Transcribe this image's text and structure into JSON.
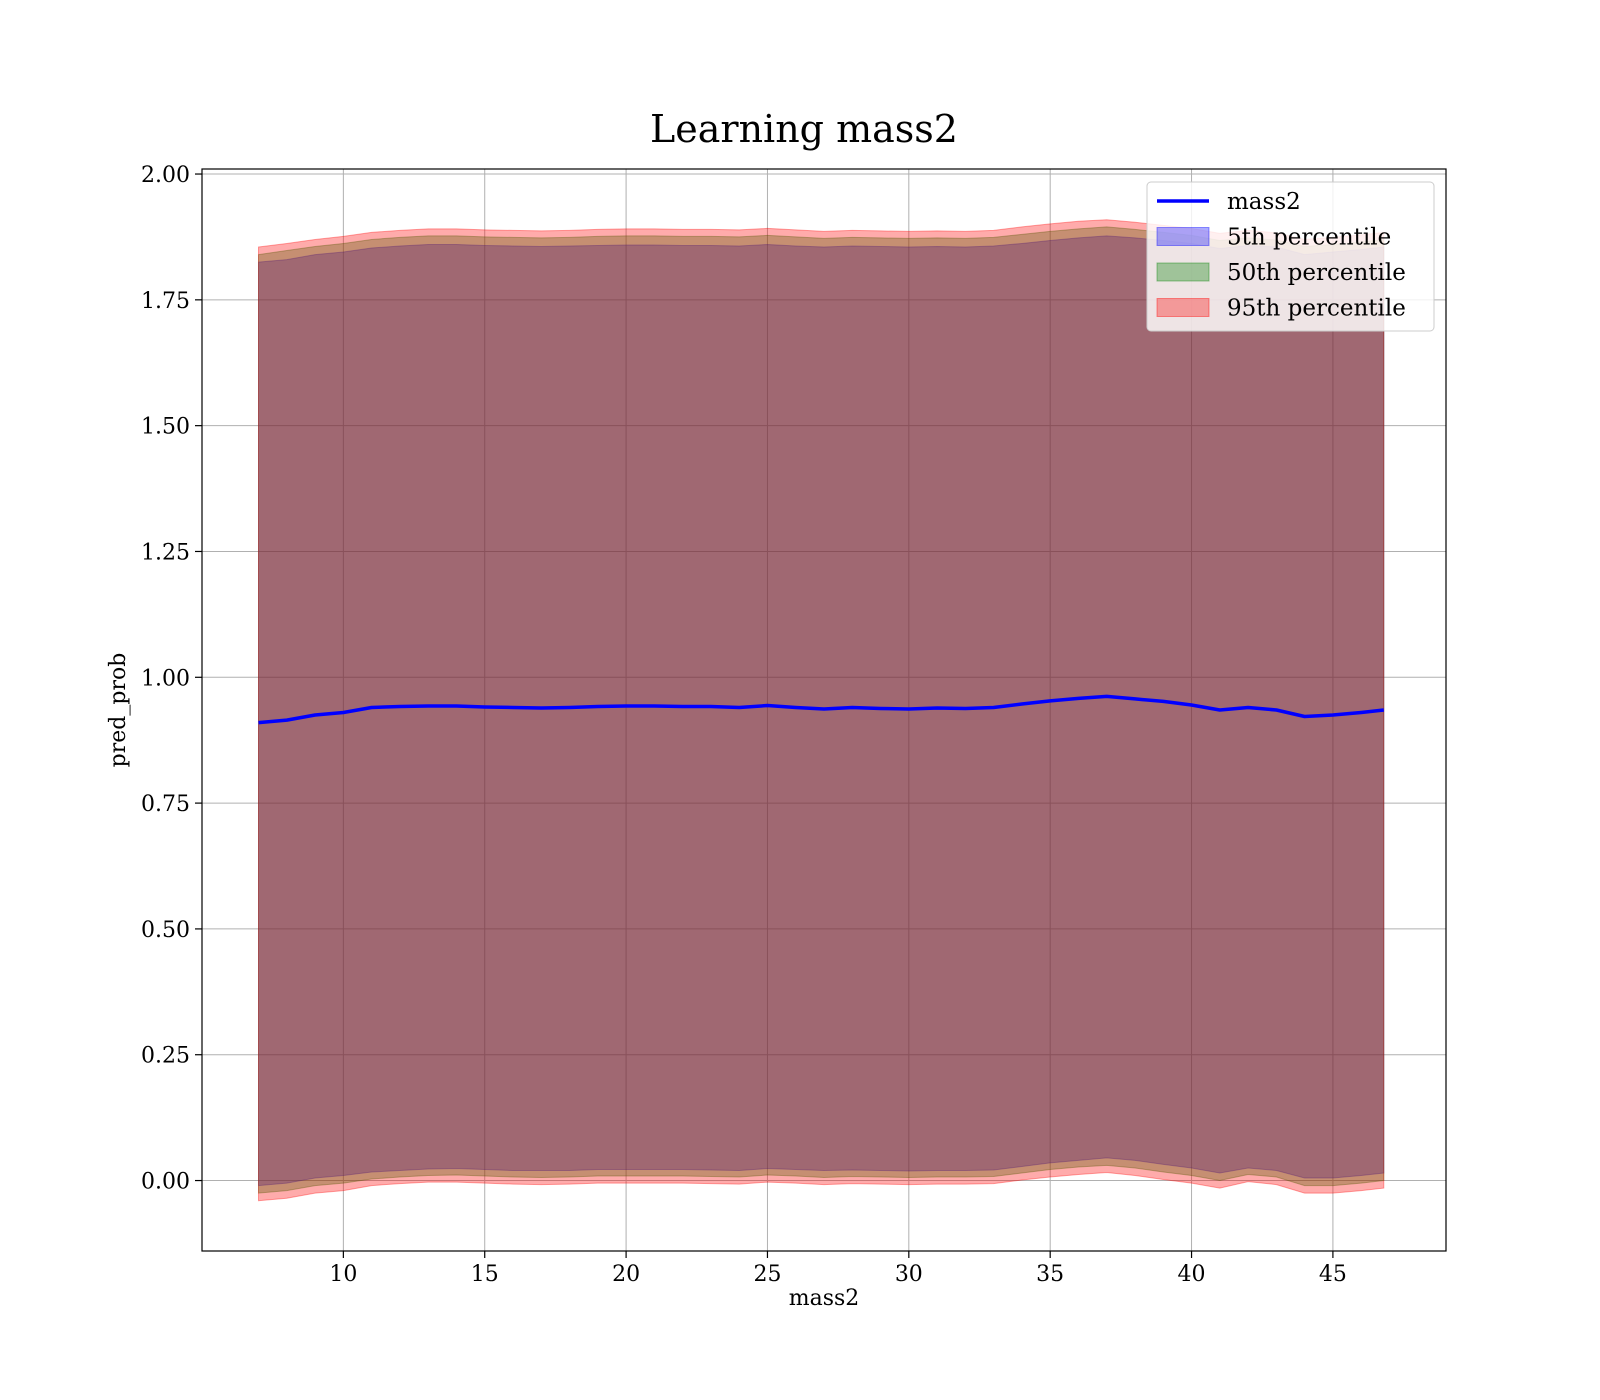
{
  "chart_data": {
    "type": "area",
    "title": "Learning mass2",
    "xlabel": "mass2",
    "ylabel": "pred_prob",
    "xlim": [
      5,
      49
    ],
    "ylim": [
      -0.14,
      2.01
    ],
    "xticks": [
      10,
      15,
      20,
      25,
      30,
      35,
      40,
      45
    ],
    "yticks": [
      0.0,
      0.25,
      0.5,
      0.75,
      1.0,
      1.25,
      1.5,
      1.75,
      2.0
    ],
    "ytick_labels": [
      "0.00",
      "0.25",
      "0.50",
      "0.75",
      "1.00",
      "1.25",
      "1.50",
      "1.75",
      "2.00"
    ],
    "grid": true,
    "legend_position": "top-right",
    "x": [
      7,
      8,
      9,
      10,
      11,
      12,
      13,
      14,
      15,
      16,
      17,
      18,
      19,
      20,
      21,
      22,
      23,
      24,
      25,
      26,
      27,
      28,
      29,
      30,
      31,
      32,
      33,
      34,
      35,
      36,
      37,
      38,
      39,
      40,
      41,
      42,
      43,
      44,
      45,
      46,
      46.8
    ],
    "line": {
      "name": "mass2",
      "color": "#0000ff",
      "values": [
        0.91,
        0.915,
        0.925,
        0.93,
        0.94,
        0.942,
        0.943,
        0.943,
        0.941,
        0.94,
        0.939,
        0.94,
        0.942,
        0.943,
        0.943,
        0.942,
        0.942,
        0.94,
        0.944,
        0.94,
        0.937,
        0.94,
        0.938,
        0.937,
        0.939,
        0.938,
        0.94,
        0.947,
        0.953,
        0.958,
        0.962,
        0.957,
        0.952,
        0.945,
        0.935,
        0.94,
        0.935,
        0.922,
        0.925,
        0.93,
        0.935
      ]
    },
    "series": [
      {
        "name": "5th percentile",
        "color": "#0000ff",
        "lower": [
          -0.01,
          -0.005,
          0.005,
          0.01,
          0.017,
          0.02,
          0.023,
          0.024,
          0.022,
          0.02,
          0.02,
          0.02,
          0.022,
          0.022,
          0.022,
          0.022,
          0.021,
          0.02,
          0.024,
          0.022,
          0.02,
          0.021,
          0.02,
          0.019,
          0.02,
          0.02,
          0.021,
          0.028,
          0.035,
          0.04,
          0.045,
          0.04,
          0.032,
          0.025,
          0.015,
          0.025,
          0.02,
          0.005,
          0.005,
          0.01,
          0.015
        ],
        "upper": [
          1.825,
          1.83,
          1.84,
          1.845,
          1.853,
          1.857,
          1.86,
          1.86,
          1.858,
          1.857,
          1.856,
          1.857,
          1.858,
          1.859,
          1.859,
          1.858,
          1.858,
          1.857,
          1.86,
          1.857,
          1.855,
          1.857,
          1.856,
          1.855,
          1.856,
          1.855,
          1.857,
          1.862,
          1.868,
          1.873,
          1.877,
          1.873,
          1.868,
          1.862,
          1.852,
          1.858,
          1.855,
          1.84,
          1.845,
          1.85,
          1.855
        ]
      },
      {
        "name": "50th percentile",
        "color": "#008000",
        "lower": [
          -0.025,
          -0.02,
          -0.01,
          -0.005,
          0.003,
          0.007,
          0.01,
          0.011,
          0.009,
          0.007,
          0.006,
          0.007,
          0.009,
          0.009,
          0.009,
          0.009,
          0.008,
          0.007,
          0.011,
          0.009,
          0.006,
          0.008,
          0.007,
          0.006,
          0.007,
          0.007,
          0.008,
          0.015,
          0.022,
          0.027,
          0.03,
          0.025,
          0.017,
          0.01,
          0.0,
          0.012,
          0.007,
          -0.01,
          -0.01,
          -0.005,
          0.0
        ],
        "upper": [
          1.84,
          1.848,
          1.856,
          1.862,
          1.87,
          1.874,
          1.877,
          1.877,
          1.875,
          1.874,
          1.873,
          1.874,
          1.876,
          1.877,
          1.877,
          1.876,
          1.876,
          1.875,
          1.878,
          1.875,
          1.872,
          1.874,
          1.873,
          1.872,
          1.873,
          1.872,
          1.874,
          1.88,
          1.886,
          1.891,
          1.895,
          1.89,
          1.884,
          1.878,
          1.868,
          1.873,
          1.869,
          1.856,
          1.86,
          1.865,
          1.87
        ]
      },
      {
        "name": "95th percentile",
        "color": "#ff0000",
        "lower": [
          -0.04,
          -0.035,
          -0.025,
          -0.02,
          -0.01,
          -0.006,
          -0.003,
          -0.003,
          -0.005,
          -0.007,
          -0.008,
          -0.007,
          -0.005,
          -0.005,
          -0.005,
          -0.005,
          -0.006,
          -0.007,
          -0.003,
          -0.005,
          -0.008,
          -0.006,
          -0.007,
          -0.008,
          -0.007,
          -0.007,
          -0.006,
          0.001,
          0.007,
          0.012,
          0.016,
          0.01,
          0.002,
          -0.005,
          -0.015,
          -0.002,
          -0.008,
          -0.025,
          -0.025,
          -0.02,
          -0.015
        ],
        "upper": [
          1.855,
          1.862,
          1.87,
          1.876,
          1.884,
          1.888,
          1.891,
          1.891,
          1.889,
          1.888,
          1.887,
          1.888,
          1.89,
          1.891,
          1.891,
          1.89,
          1.89,
          1.889,
          1.892,
          1.889,
          1.886,
          1.888,
          1.887,
          1.886,
          1.887,
          1.886,
          1.888,
          1.895,
          1.901,
          1.906,
          1.909,
          1.904,
          1.898,
          1.892,
          1.882,
          1.888,
          1.883,
          1.87,
          1.874,
          1.879,
          1.884
        ]
      }
    ]
  }
}
